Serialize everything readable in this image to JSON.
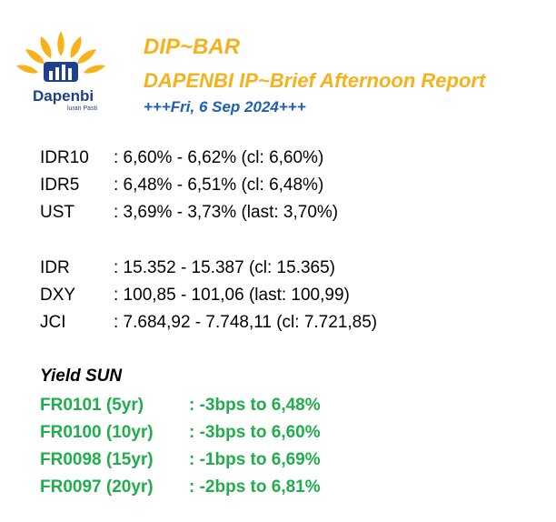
{
  "header": {
    "brand": "Dapenbi",
    "brand_tagline": "luran Pasti",
    "title": "DIP~BAR",
    "subtitle": "DAPENBI IP~Brief Afternoon Report",
    "date": "+++Fri, 6 Sep 2024+++"
  },
  "bonds": [
    {
      "label": "IDR10",
      "value": ": 6,60% - 6,62% (cl: 6,60%)"
    },
    {
      "label": "IDR5",
      "value": ": 6,48% - 6,51% (cl: 6,48%)"
    },
    {
      "label": "UST",
      "value": ": 3,69% - 3,73% (last: 3,70%)"
    }
  ],
  "markets": [
    {
      "label": "IDR",
      "value": ": 15.352 - 15.387 (cl: 15.365)"
    },
    {
      "label": "DXY",
      "value": ": 100,85 - 101,06 (last: 100,99)"
    },
    {
      "label": "JCI",
      "value": ": 7.684,92 - 7.748,11 (cl: 7.721,85)"
    }
  ],
  "yield_section": {
    "title": "Yield SUN",
    "items": [
      {
        "label": "FR0101 (5yr)",
        "value": ": -3bps to 6,48%"
      },
      {
        "label": "FR0100 (10yr)",
        "value": ": -3bps to 6,60%"
      },
      {
        "label": "FR0098 (15yr)",
        "value": ": -1bps to 6,69%"
      },
      {
        "label": "FR0097 (20yr)",
        "value": ": -2bps to 6,81%"
      }
    ]
  },
  "colors": {
    "title": "#f5b21b",
    "date": "#1f5fb8",
    "yield": "#1fae4b",
    "logo_blue": "#1f3f8f"
  }
}
